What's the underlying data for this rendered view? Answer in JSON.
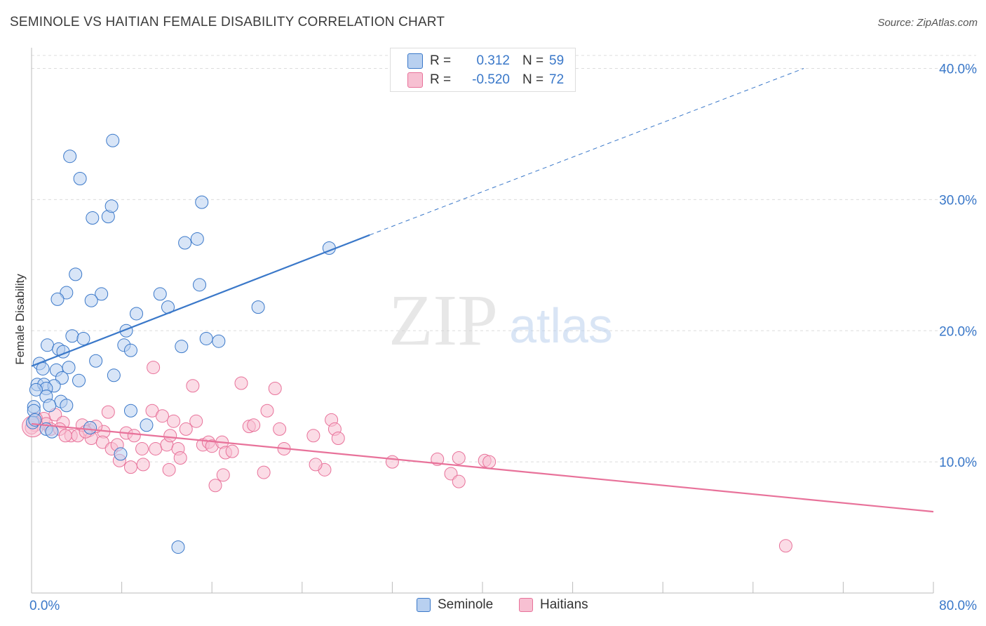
{
  "title": "SEMINOLE VS HAITIAN FEMALE DISABILITY CORRELATION CHART",
  "source": "Source: ZipAtlas.com",
  "watermark": {
    "zip": "ZIP",
    "atlas": "atlas"
  },
  "colors": {
    "seminole": "#3a78c9",
    "seminole_fill": "#b8d0f0",
    "haitians": "#e8729a",
    "haitians_fill": "#f7c0d2",
    "tick_label": "#3a78c9",
    "grid": "#dddddd"
  },
  "stats_legend": {
    "rows": [
      {
        "label": "R =",
        "r": "0.312",
        "n_label": "N =",
        "n": "59"
      },
      {
        "label": "R =",
        "r": "-0.520",
        "n_label": "N =",
        "n": "72"
      }
    ]
  },
  "chart_data": {
    "type": "scatter",
    "title": "SEMINOLE VS HAITIAN FEMALE DISABILITY CORRELATION CHART",
    "xlabel": "",
    "ylabel": "Female Disability",
    "xlim": [
      0,
      80
    ],
    "ylim": [
      0,
      41.5
    ],
    "x_tick_labels": [
      "0.0%",
      "80.0%"
    ],
    "y_ticks": [
      10,
      20,
      30,
      40
    ],
    "y_tick_labels": [
      "10.0%",
      "20.0%",
      "30.0%",
      "40.0%"
    ],
    "grid": true,
    "legend_position": "bottom",
    "series": [
      {
        "name": "Seminole",
        "r": 0.312,
        "n": 59,
        "trend": {
          "x0": 0,
          "y0": 17.3,
          "x1": 30,
          "y1": 27.3,
          "dash_to_x": 68.5,
          "dash_to_y": 40.0
        },
        "points": [
          [
            3.4,
            33.3
          ],
          [
            7.2,
            34.5
          ],
          [
            4.3,
            31.6
          ],
          [
            5.4,
            28.6
          ],
          [
            6.8,
            28.7
          ],
          [
            7.1,
            29.5
          ],
          [
            15.1,
            29.8
          ],
          [
            13.6,
            26.7
          ],
          [
            14.7,
            27.0
          ],
          [
            26.4,
            26.3
          ],
          [
            3.9,
            24.3
          ],
          [
            6.2,
            22.8
          ],
          [
            3.1,
            22.9
          ],
          [
            2.3,
            22.4
          ],
          [
            5.3,
            22.3
          ],
          [
            11.4,
            22.8
          ],
          [
            14.9,
            23.5
          ],
          [
            12.1,
            21.8
          ],
          [
            20.1,
            21.8
          ],
          [
            9.3,
            21.3
          ],
          [
            8.4,
            20.0
          ],
          [
            3.6,
            19.6
          ],
          [
            4.6,
            19.4
          ],
          [
            15.5,
            19.4
          ],
          [
            16.6,
            19.2
          ],
          [
            8.2,
            18.9
          ],
          [
            13.3,
            18.8
          ],
          [
            8.8,
            18.5
          ],
          [
            1.4,
            18.9
          ],
          [
            2.4,
            18.6
          ],
          [
            2.8,
            18.4
          ],
          [
            5.7,
            17.7
          ],
          [
            0.7,
            17.5
          ],
          [
            1.0,
            17.1
          ],
          [
            2.2,
            17.0
          ],
          [
            3.3,
            17.2
          ],
          [
            7.3,
            16.6
          ],
          [
            2.7,
            16.4
          ],
          [
            4.2,
            16.2
          ],
          [
            0.5,
            15.9
          ],
          [
            1.1,
            15.9
          ],
          [
            2.0,
            15.8
          ],
          [
            1.3,
            15.6
          ],
          [
            0.4,
            15.5
          ],
          [
            1.3,
            15.0
          ],
          [
            2.6,
            14.6
          ],
          [
            0.2,
            14.2
          ],
          [
            1.6,
            14.3
          ],
          [
            3.1,
            14.3
          ],
          [
            0.2,
            13.9
          ],
          [
            8.8,
            13.9
          ],
          [
            0.1,
            13.0
          ],
          [
            0.3,
            13.2
          ],
          [
            1.3,
            12.5
          ],
          [
            5.2,
            12.6
          ],
          [
            1.8,
            12.3
          ],
          [
            10.2,
            12.8
          ],
          [
            7.9,
            10.6
          ],
          [
            13.0,
            3.5
          ]
        ]
      },
      {
        "name": "Haitians",
        "r": -0.52,
        "n": 72,
        "trend": {
          "x0": 0,
          "y0": 12.9,
          "x1": 80,
          "y1": 6.2
        },
        "points": [
          [
            10.8,
            17.2
          ],
          [
            14.3,
            15.8
          ],
          [
            18.6,
            16.0
          ],
          [
            21.6,
            15.6
          ],
          [
            6.8,
            13.8
          ],
          [
            10.7,
            13.9
          ],
          [
            11.6,
            13.5
          ],
          [
            12.6,
            13.1
          ],
          [
            14.6,
            13.1
          ],
          [
            20.9,
            13.9
          ],
          [
            26.6,
            13.2
          ],
          [
            2.1,
            13.6
          ],
          [
            1.1,
            13.3
          ],
          [
            0.4,
            13.3
          ],
          [
            0.3,
            12.8
          ],
          [
            1.3,
            12.9
          ],
          [
            2.8,
            13.0
          ],
          [
            1.7,
            12.5
          ],
          [
            3.5,
            12.0
          ],
          [
            4.1,
            12.0
          ],
          [
            5.1,
            12.4
          ],
          [
            5.3,
            11.8
          ],
          [
            6.4,
            12.3
          ],
          [
            5.7,
            12.7
          ],
          [
            4.5,
            12.8
          ],
          [
            6.3,
            11.5
          ],
          [
            7.1,
            11.0
          ],
          [
            7.6,
            11.3
          ],
          [
            8.4,
            12.2
          ],
          [
            9.1,
            12.0
          ],
          [
            9.8,
            11.0
          ],
          [
            11.0,
            11.0
          ],
          [
            12.0,
            11.3
          ],
          [
            12.3,
            12.0
          ],
          [
            13.0,
            11.0
          ],
          [
            13.7,
            12.5
          ],
          [
            15.2,
            11.3
          ],
          [
            15.7,
            11.5
          ],
          [
            16.0,
            11.2
          ],
          [
            16.9,
            11.5
          ],
          [
            17.2,
            10.7
          ],
          [
            17.8,
            10.8
          ],
          [
            19.3,
            12.7
          ],
          [
            19.7,
            12.8
          ],
          [
            22.0,
            12.5
          ],
          [
            22.4,
            11.0
          ],
          [
            26.9,
            12.5
          ],
          [
            27.2,
            11.8
          ],
          [
            7.8,
            10.1
          ],
          [
            8.8,
            9.6
          ],
          [
            9.9,
            9.8
          ],
          [
            13.2,
            10.3
          ],
          [
            12.2,
            9.4
          ],
          [
            17.0,
            9.0
          ],
          [
            16.3,
            8.2
          ],
          [
            20.6,
            9.2
          ],
          [
            26.0,
            9.4
          ],
          [
            25.2,
            9.8
          ],
          [
            32.0,
            10.0
          ],
          [
            36.0,
            10.2
          ],
          [
            37.9,
            10.3
          ],
          [
            40.2,
            10.1
          ],
          [
            37.2,
            9.1
          ],
          [
            37.9,
            8.5
          ],
          [
            40.6,
            10.0
          ],
          [
            0.0,
            12.6
          ],
          [
            2.5,
            12.5
          ],
          [
            3.0,
            12.0
          ],
          [
            4.8,
            12.3
          ],
          [
            25.0,
            12.0
          ],
          [
            66.9,
            3.6
          ],
          [
            0.1,
            12.7
          ]
        ]
      }
    ]
  },
  "legend": {
    "items": [
      {
        "label": "Seminole"
      },
      {
        "label": "Haitians"
      }
    ]
  }
}
